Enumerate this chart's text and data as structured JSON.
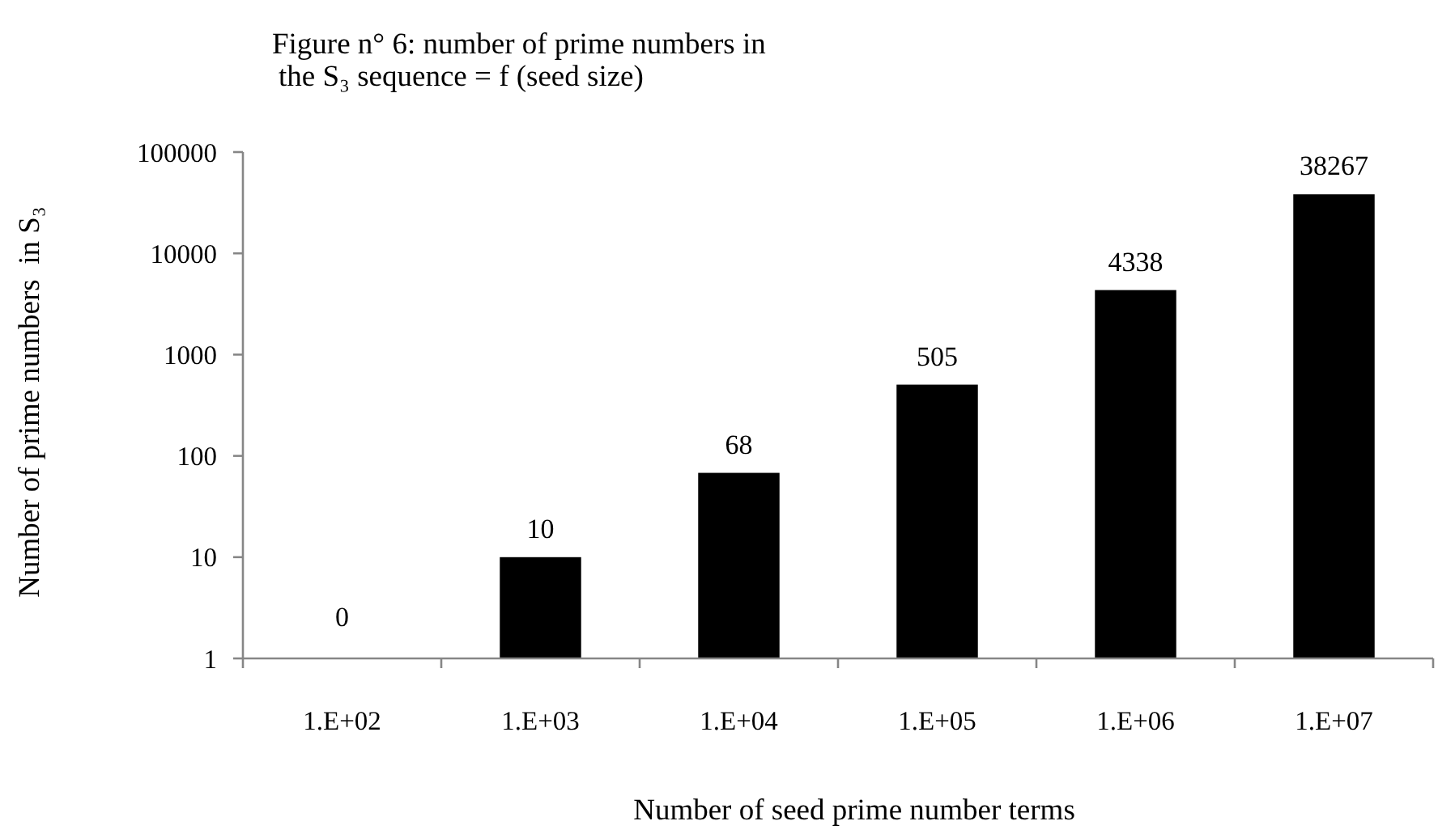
{
  "chart_data": {
    "type": "bar",
    "title": "Figure n° 6: number of prime numbers in\nthe S₃ sequence = f (seed size)",
    "xlabel": "Number of seed prime number terms",
    "ylabel": "Number of prime numbers  in S₃",
    "categories": [
      "1.E+02",
      "1.E+03",
      "1.E+04",
      "1.E+05",
      "1.E+06",
      "1.E+07"
    ],
    "values": [
      null,
      10,
      68,
      505,
      4338,
      38267
    ],
    "value_labels": [
      "0",
      "10",
      "68",
      "505",
      "4338",
      "38267"
    ],
    "color": "#000000",
    "log": true,
    "ylim": [
      1,
      100000
    ],
    "yticks": [
      1,
      10,
      100,
      1000,
      10000,
      100000
    ]
  }
}
